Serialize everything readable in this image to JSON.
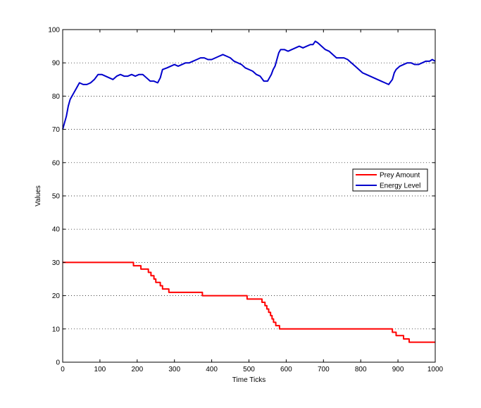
{
  "chart_data": {
    "type": "line",
    "title": "",
    "xlabel": "Time Ticks",
    "ylabel": "Values",
    "xlim": [
      0,
      1000
    ],
    "ylim": [
      0,
      100
    ],
    "xticks": [
      0,
      100,
      200,
      300,
      400,
      500,
      600,
      700,
      800,
      900,
      1000
    ],
    "yticks": [
      0,
      10,
      20,
      30,
      40,
      50,
      60,
      70,
      80,
      90,
      100
    ],
    "grid": "horizontal dotted",
    "legend_position": "right",
    "series": [
      {
        "name": "Prey Amount",
        "color": "#ff0000",
        "style": "step",
        "points": [
          [
            0,
            30
          ],
          [
            190,
            30
          ],
          [
            190,
            29
          ],
          [
            210,
            29
          ],
          [
            210,
            28
          ],
          [
            230,
            28
          ],
          [
            230,
            27
          ],
          [
            237,
            27
          ],
          [
            237,
            26
          ],
          [
            245,
            26
          ],
          [
            245,
            25
          ],
          [
            250,
            25
          ],
          [
            250,
            24
          ],
          [
            262,
            24
          ],
          [
            262,
            23
          ],
          [
            268,
            23
          ],
          [
            268,
            22
          ],
          [
            285,
            22
          ],
          [
            285,
            21
          ],
          [
            375,
            21
          ],
          [
            375,
            20
          ],
          [
            495,
            20
          ],
          [
            495,
            19
          ],
          [
            535,
            19
          ],
          [
            535,
            18
          ],
          [
            543,
            18
          ],
          [
            543,
            17
          ],
          [
            548,
            17
          ],
          [
            548,
            16
          ],
          [
            553,
            16
          ],
          [
            553,
            15
          ],
          [
            558,
            15
          ],
          [
            558,
            14
          ],
          [
            562,
            14
          ],
          [
            562,
            13
          ],
          [
            566,
            13
          ],
          [
            566,
            12
          ],
          [
            572,
            12
          ],
          [
            572,
            11
          ],
          [
            582,
            11
          ],
          [
            582,
            10
          ],
          [
            885,
            10
          ],
          [
            885,
            9
          ],
          [
            895,
            9
          ],
          [
            895,
            8
          ],
          [
            915,
            8
          ],
          [
            915,
            7
          ],
          [
            930,
            7
          ],
          [
            930,
            6
          ],
          [
            1000,
            6
          ]
        ]
      },
      {
        "name": "Energy Level",
        "color": "#0000cc",
        "style": "line",
        "points": [
          [
            0,
            70
          ],
          [
            5,
            72
          ],
          [
            10,
            74
          ],
          [
            15,
            77
          ],
          [
            20,
            79
          ],
          [
            25,
            80
          ],
          [
            30,
            81
          ],
          [
            35,
            82
          ],
          [
            40,
            83
          ],
          [
            45,
            84
          ],
          [
            55,
            83.5
          ],
          [
            65,
            83.5
          ],
          [
            75,
            84
          ],
          [
            85,
            85
          ],
          [
            95,
            86.5
          ],
          [
            105,
            86.5
          ],
          [
            115,
            86
          ],
          [
            125,
            85.5
          ],
          [
            135,
            85
          ],
          [
            145,
            86
          ],
          [
            155,
            86.5
          ],
          [
            165,
            86
          ],
          [
            175,
            86
          ],
          [
            185,
            86.5
          ],
          [
            195,
            86
          ],
          [
            205,
            86.5
          ],
          [
            215,
            86.5
          ],
          [
            225,
            85.5
          ],
          [
            235,
            84.5
          ],
          [
            245,
            84.5
          ],
          [
            255,
            84
          ],
          [
            262,
            85.5
          ],
          [
            268,
            88
          ],
          [
            280,
            88.5
          ],
          [
            290,
            89
          ],
          [
            300,
            89.5
          ],
          [
            310,
            89
          ],
          [
            320,
            89.5
          ],
          [
            330,
            90
          ],
          [
            340,
            90
          ],
          [
            350,
            90.5
          ],
          [
            360,
            91
          ],
          [
            370,
            91.5
          ],
          [
            380,
            91.5
          ],
          [
            390,
            91
          ],
          [
            400,
            91
          ],
          [
            410,
            91.5
          ],
          [
            420,
            92
          ],
          [
            430,
            92.5
          ],
          [
            440,
            92
          ],
          [
            450,
            91.5
          ],
          [
            460,
            90.5
          ],
          [
            470,
            90
          ],
          [
            480,
            89.5
          ],
          [
            490,
            88.5
          ],
          [
            500,
            88
          ],
          [
            510,
            87.5
          ],
          [
            520,
            86.5
          ],
          [
            530,
            86
          ],
          [
            540,
            84.5
          ],
          [
            550,
            84.5
          ],
          [
            555,
            85.5
          ],
          [
            560,
            86.5
          ],
          [
            565,
            88
          ],
          [
            570,
            89
          ],
          [
            575,
            91
          ],
          [
            580,
            93
          ],
          [
            585,
            94
          ],
          [
            595,
            94
          ],
          [
            605,
            93.5
          ],
          [
            615,
            94
          ],
          [
            625,
            94.5
          ],
          [
            635,
            95
          ],
          [
            645,
            94.5
          ],
          [
            655,
            95
          ],
          [
            665,
            95.5
          ],
          [
            672,
            95.5
          ],
          [
            678,
            96.5
          ],
          [
            685,
            96
          ],
          [
            695,
            95
          ],
          [
            705,
            94
          ],
          [
            715,
            93.5
          ],
          [
            725,
            92.5
          ],
          [
            735,
            91.5
          ],
          [
            745,
            91.5
          ],
          [
            755,
            91.5
          ],
          [
            765,
            91
          ],
          [
            775,
            90
          ],
          [
            785,
            89
          ],
          [
            795,
            88
          ],
          [
            805,
            87
          ],
          [
            815,
            86.5
          ],
          [
            825,
            86
          ],
          [
            835,
            85.5
          ],
          [
            845,
            85
          ],
          [
            855,
            84.5
          ],
          [
            865,
            84
          ],
          [
            875,
            83.5
          ],
          [
            885,
            85
          ],
          [
            890,
            87
          ],
          [
            895,
            88
          ],
          [
            905,
            89
          ],
          [
            915,
            89.5
          ],
          [
            925,
            90
          ],
          [
            935,
            90
          ],
          [
            945,
            89.5
          ],
          [
            955,
            89.5
          ],
          [
            965,
            90
          ],
          [
            975,
            90.5
          ],
          [
            985,
            90.5
          ],
          [
            992,
            91
          ],
          [
            1000,
            90.5
          ]
        ]
      }
    ]
  }
}
